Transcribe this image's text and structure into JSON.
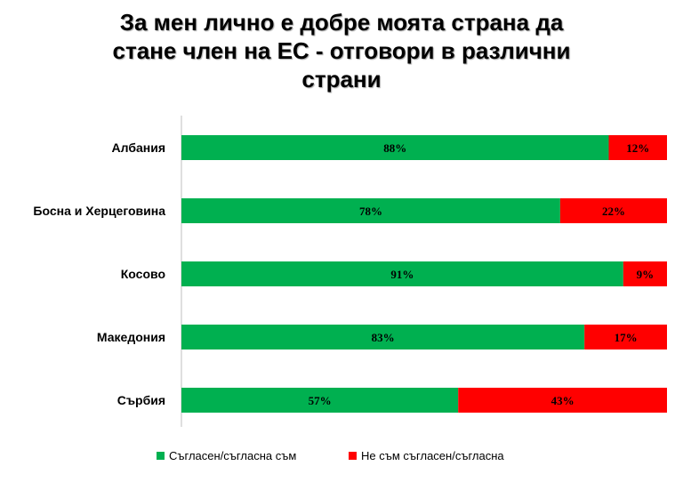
{
  "chart_data": {
    "type": "bar",
    "orientation": "horizontal",
    "stacked": true,
    "title_lines": [
      "За мен лично е добре моята страна да",
      "стане член на ЕС - отговори в различни",
      "страни"
    ],
    "categories": [
      "Албания",
      "Босна и Херцеговина",
      "Косово",
      "Македония",
      "Сърбия"
    ],
    "series": [
      {
        "name": "Съгласен/съгласна съм",
        "color": "#00b050",
        "values": [
          88,
          78,
          91,
          83,
          57
        ],
        "labels": [
          "88%",
          "78%",
          "91%",
          "83%",
          "57%"
        ]
      },
      {
        "name": "Не съм съгласен/съгласна",
        "color": "#ff0000",
        "values": [
          12,
          22,
          9,
          17,
          43
        ],
        "labels": [
          "12%",
          "22%",
          "9%",
          "17%",
          "43%"
        ]
      }
    ],
    "xlim": [
      0,
      100
    ],
    "legend": "bottom",
    "grid": false
  }
}
